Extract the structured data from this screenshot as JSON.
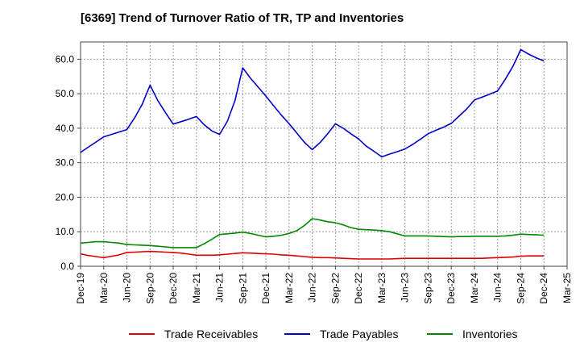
{
  "chart_data": {
    "type": "line",
    "title": "[6369]  Trend of Turnover Ratio of TR, TP and Inventories",
    "xlabel": "",
    "ylabel": "",
    "ylim": [
      0,
      65
    ],
    "y_ticks": [
      "0.0",
      "10.0",
      "20.0",
      "30.0",
      "40.0",
      "50.0",
      "60.0"
    ],
    "x_ticks": [
      "Dec-19",
      "Mar-20",
      "Jun-20",
      "Sep-20",
      "Dec-20",
      "Mar-21",
      "Jun-21",
      "Sep-21",
      "Dec-21",
      "Mar-22",
      "Jun-22",
      "Sep-22",
      "Dec-22",
      "Mar-23",
      "Jun-23",
      "Sep-23",
      "Dec-23",
      "Mar-24",
      "Jun-24",
      "Sep-24",
      "Dec-24",
      "Mar-25"
    ],
    "x": [
      "Dec-19",
      "Jan-20",
      "Feb-20",
      "Mar-20",
      "Apr-20",
      "May-20",
      "Jun-20",
      "Jul-20",
      "Aug-20",
      "Sep-20",
      "Oct-20",
      "Nov-20",
      "Dec-20",
      "Jan-21",
      "Feb-21",
      "Mar-21",
      "Apr-21",
      "May-21",
      "Jun-21",
      "Jul-21",
      "Aug-21",
      "Sep-21",
      "Oct-21",
      "Nov-21",
      "Dec-21",
      "Jan-22",
      "Feb-22",
      "Mar-22",
      "Apr-22",
      "May-22",
      "Jun-22",
      "Jul-22",
      "Aug-22",
      "Sep-22",
      "Oct-22",
      "Nov-22",
      "Dec-22",
      "Jan-23",
      "Feb-23",
      "Mar-23",
      "Apr-23",
      "May-23",
      "Jun-23",
      "Jul-23",
      "Aug-23",
      "Sep-23",
      "Oct-23",
      "Nov-23",
      "Dec-23",
      "Jan-24",
      "Feb-24",
      "Mar-24",
      "Apr-24",
      "May-24",
      "Jun-24",
      "Jul-24",
      "Aug-24",
      "Sep-24",
      "Oct-24",
      "Nov-24",
      "Dec-24"
    ],
    "grid": true,
    "legend_position": "bottom",
    "series": [
      {
        "name": "Trade Receivables",
        "color": "#dd0000",
        "values": [
          3.6,
          3.1,
          2.8,
          2.5,
          2.9,
          3.3,
          4.0,
          4.1,
          4.2,
          4.3,
          4.2,
          4.1,
          4.0,
          3.8,
          3.5,
          3.2,
          3.2,
          3.2,
          3.3,
          3.5,
          3.7,
          3.9,
          3.8,
          3.7,
          3.6,
          3.5,
          3.3,
          3.2,
          3.0,
          2.8,
          2.6,
          2.5,
          2.5,
          2.4,
          2.3,
          2.2,
          2.1,
          2.1,
          2.1,
          2.1,
          2.1,
          2.2,
          2.3,
          2.3,
          2.3,
          2.3,
          2.3,
          2.3,
          2.3,
          2.3,
          2.3,
          2.3,
          2.3,
          2.4,
          2.5,
          2.6,
          2.7,
          2.9,
          3.0,
          3.0,
          3.0
        ]
      },
      {
        "name": "Trade Payables",
        "color": "#0000cc",
        "values": [
          33.0,
          34.5,
          36.0,
          37.5,
          38.2,
          38.9,
          39.6,
          43.0,
          47.0,
          52.5,
          48.0,
          44.5,
          41.2,
          41.9,
          42.6,
          43.4,
          41.0,
          39.2,
          38.2,
          42.0,
          48.0,
          57.5,
          54.5,
          51.9,
          49.3,
          46.5,
          43.8,
          41.3,
          38.6,
          35.9,
          33.8,
          35.8,
          38.4,
          41.3,
          40.0,
          38.4,
          36.9,
          34.8,
          33.3,
          31.7,
          32.5,
          33.2,
          34.0,
          35.3,
          36.8,
          38.4,
          39.4,
          40.3,
          41.4,
          43.5,
          45.6,
          48.2,
          49.0,
          49.9,
          50.8,
          54.2,
          58.0,
          62.8,
          61.5,
          60.4,
          59.5
        ]
      },
      {
        "name": "Inventories",
        "color": "#008800",
        "values": [
          6.7,
          6.9,
          7.1,
          7.1,
          6.9,
          6.7,
          6.3,
          6.2,
          6.1,
          6.0,
          5.8,
          5.6,
          5.4,
          5.4,
          5.4,
          5.4,
          6.5,
          7.8,
          9.2,
          9.4,
          9.6,
          9.9,
          9.5,
          9.0,
          8.5,
          8.7,
          9.0,
          9.5,
          10.3,
          11.8,
          13.8,
          13.4,
          12.9,
          12.6,
          12.0,
          11.2,
          10.7,
          10.6,
          10.5,
          10.3,
          10.0,
          9.4,
          8.8,
          8.8,
          8.8,
          8.8,
          8.7,
          8.6,
          8.5,
          8.6,
          8.6,
          8.7,
          8.7,
          8.7,
          8.7,
          8.8,
          9.0,
          9.3,
          9.2,
          9.1,
          9.0
        ]
      }
    ]
  }
}
